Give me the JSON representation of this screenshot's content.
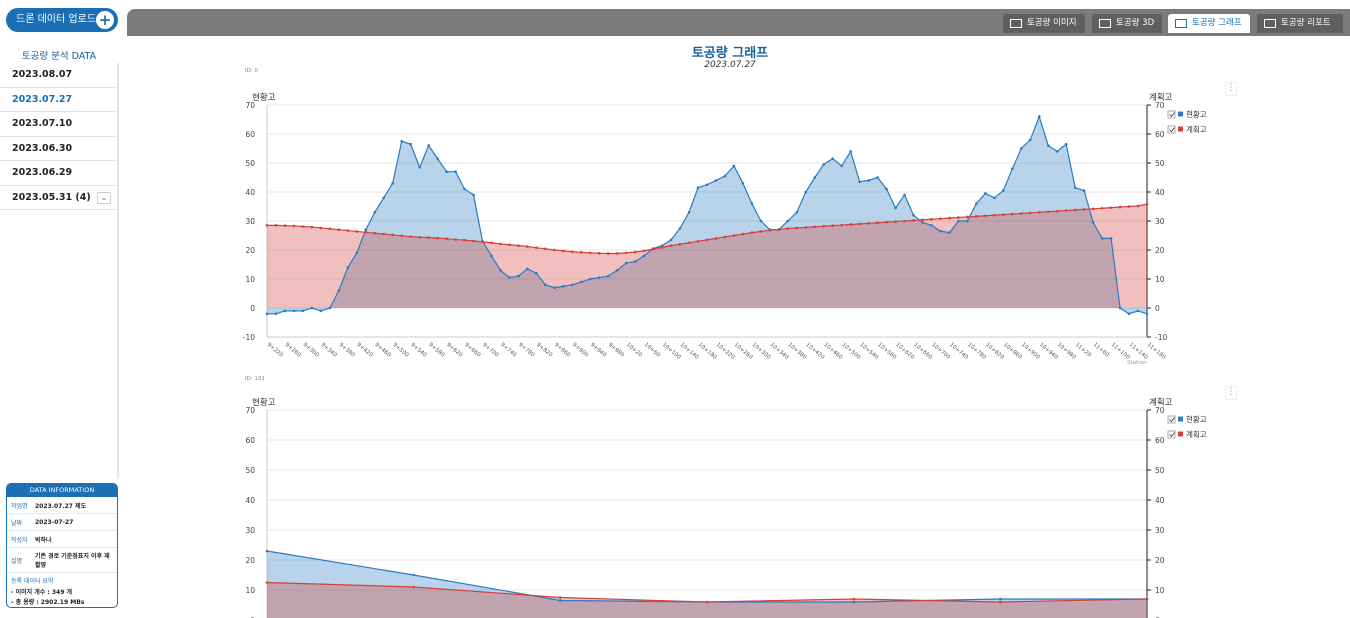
{
  "sidebar": {
    "upload_button": "드론 데이터 업로드",
    "title": "토공량 분석 DATA",
    "dates": [
      "2023.08.07",
      "2023.07.27",
      "2023.07.10",
      "2023.06.30",
      "2023.06.29",
      "2023.05.31 (4)"
    ]
  },
  "tabs": [
    "토공량 이미지",
    "토공량 3D",
    "토공량 그래프",
    "토공량 리포트"
  ],
  "header": {
    "title": "토공량 그래프",
    "date": "2023.07.27"
  },
  "info": {
    "title": "DATA INFORMATION",
    "rows": [
      [
        "작업명",
        "2023.07.27 제도"
      ],
      [
        "날짜",
        "2023-07-27"
      ],
      [
        "작성자",
        "박하나"
      ],
      [
        "설명",
        "기존 경로 기준점표지 이후 재 촬영"
      ]
    ],
    "summary_title": "등록 데이터 요약",
    "summary": [
      "- 이미지 개수 : 349 개",
      "- 총 용량 : 2902.19 MBs"
    ]
  },
  "chart_data": [
    {
      "type": "area",
      "id_label": "ID: 0",
      "ylabel": "현황고",
      "y2label": "계획고",
      "xlabel": "Station",
      "grid": true,
      "ylim": [
        -10,
        70
      ],
      "yticks": [
        -10,
        0,
        10,
        20,
        30,
        40,
        50,
        60,
        70
      ],
      "y2lim": [
        -10,
        70
      ],
      "y2ticks": [
        -10,
        0,
        10,
        20,
        30,
        40,
        50,
        60,
        70
      ],
      "categories": [
        "9+220",
        null,
        "9+260",
        null,
        "9+300",
        null,
        "9+340",
        null,
        "9+380",
        null,
        "9+420",
        null,
        "9+460",
        null,
        "9+500",
        null,
        "9+540",
        null,
        "9+580",
        null,
        "9+620",
        null,
        "9+660",
        null,
        "9+700",
        null,
        "9+740",
        null,
        "9+780",
        null,
        "9+820",
        null,
        "9+860",
        null,
        "9+900",
        null,
        "9+940",
        null,
        "9+980",
        null,
        "10+20",
        null,
        "10+60",
        null,
        "10+100",
        null,
        "10+140",
        null,
        "10+180",
        null,
        "10+220",
        null,
        "10+260",
        null,
        "10+300",
        null,
        "10+340",
        null,
        "10+380",
        null,
        "10+420",
        null,
        "10+460",
        null,
        "10+500",
        null,
        "10+540",
        null,
        "10+580",
        null,
        "10+620",
        null,
        "10+660",
        null,
        "10+700",
        null,
        "10+740",
        null,
        "10+780",
        null,
        "10+820",
        null,
        "10+860",
        null,
        "10+900",
        null,
        "10+940",
        null,
        "10+980",
        null,
        "11+20",
        null,
        "11+60",
        null,
        "11+100",
        null,
        "11+140",
        null,
        "11+180"
      ],
      "series": [
        {
          "name": "현황고",
          "color": "#2b7bc0",
          "values": [
            -2,
            -2,
            -1,
            -1,
            -1,
            0,
            -1,
            0,
            6,
            14,
            19,
            27,
            33,
            38,
            43,
            57.5,
            56.5,
            48.5,
            56,
            51.5,
            47,
            47,
            41,
            39,
            23,
            18,
            13,
            10.5,
            11,
            13.5,
            12,
            8,
            7,
            7.5,
            8,
            9,
            10,
            10.5,
            11,
            13,
            15.5,
            16,
            18,
            20.5,
            21.5,
            23.5,
            27.5,
            33,
            41.5,
            42.5,
            44,
            45.5,
            49,
            43,
            36,
            30,
            27,
            27,
            30,
            33,
            40,
            45,
            49.5,
            51.5,
            49,
            54,
            43.5,
            44,
            45,
            41,
            34.5,
            39,
            32,
            29.5,
            28.5,
            26.5,
            26,
            30,
            30,
            36,
            39.5,
            38,
            40.5,
            48,
            55,
            58,
            66,
            56,
            54,
            56.5,
            41.5,
            40.5,
            29.5,
            24,
            24,
            0,
            -2,
            -1,
            -2
          ]
        },
        {
          "name": "계획고",
          "color": "#d43f3a",
          "axis": "y2",
          "values": [
            28.5,
            28.5,
            28.4,
            28.3,
            28.1,
            27.9,
            27.6,
            27.3,
            27.0,
            26.7,
            26.4,
            26.1,
            25.8,
            25.5,
            25.2,
            24.9,
            24.6,
            24.4,
            24.3,
            24.1,
            23.9,
            23.6,
            23.4,
            23.1,
            22.8,
            22.5,
            22.1,
            21.8,
            21.5,
            21.2,
            20.8,
            20.4,
            20.0,
            19.7,
            19.4,
            19.2,
            19.0,
            18.9,
            18.8,
            18.8,
            19.0,
            19.3,
            19.7,
            20.3,
            20.9,
            21.5,
            22.0,
            22.5,
            23.0,
            23.5,
            24.0,
            24.5,
            25.0,
            25.5,
            26.0,
            26.4,
            26.8,
            27.1,
            27.4,
            27.6,
            27.8,
            28.0,
            28.2,
            28.4,
            28.6,
            28.8,
            29.0,
            29.2,
            29.4,
            29.6,
            29.8,
            30.0,
            30.2,
            30.4,
            30.6,
            30.8,
            31.0,
            31.2,
            31.4,
            31.6,
            31.8,
            32.0,
            32.2,
            32.4,
            32.6,
            32.8,
            33.0,
            33.2,
            33.4,
            33.6,
            33.8,
            34.0,
            34.2,
            34.4,
            34.6,
            34.8,
            35.0,
            35.2,
            35.8
          ]
        }
      ]
    },
    {
      "type": "area",
      "id_label": "ID: 101",
      "ylabel": "현황고",
      "y2label": "계획고",
      "grid": true,
      "ylim": [
        -10,
        70
      ],
      "yticks": [
        0,
        10,
        20,
        30,
        40,
        50,
        60,
        70
      ],
      "y2lim": [
        -10,
        70
      ],
      "y2ticks": [
        0,
        10,
        20,
        30,
        40,
        50,
        60,
        70
      ],
      "categories": [
        null,
        null,
        null,
        null,
        null,
        null,
        null
      ],
      "series": [
        {
          "name": "현황고",
          "color": "#2b7bc0",
          "values": [
            23,
            15,
            6.5,
            6,
            6,
            7,
            7
          ]
        },
        {
          "name": "계획고",
          "color": "#d43f3a",
          "axis": "y2",
          "values": [
            12.5,
            11,
            7.5,
            6,
            7,
            6,
            7
          ]
        }
      ]
    }
  ]
}
